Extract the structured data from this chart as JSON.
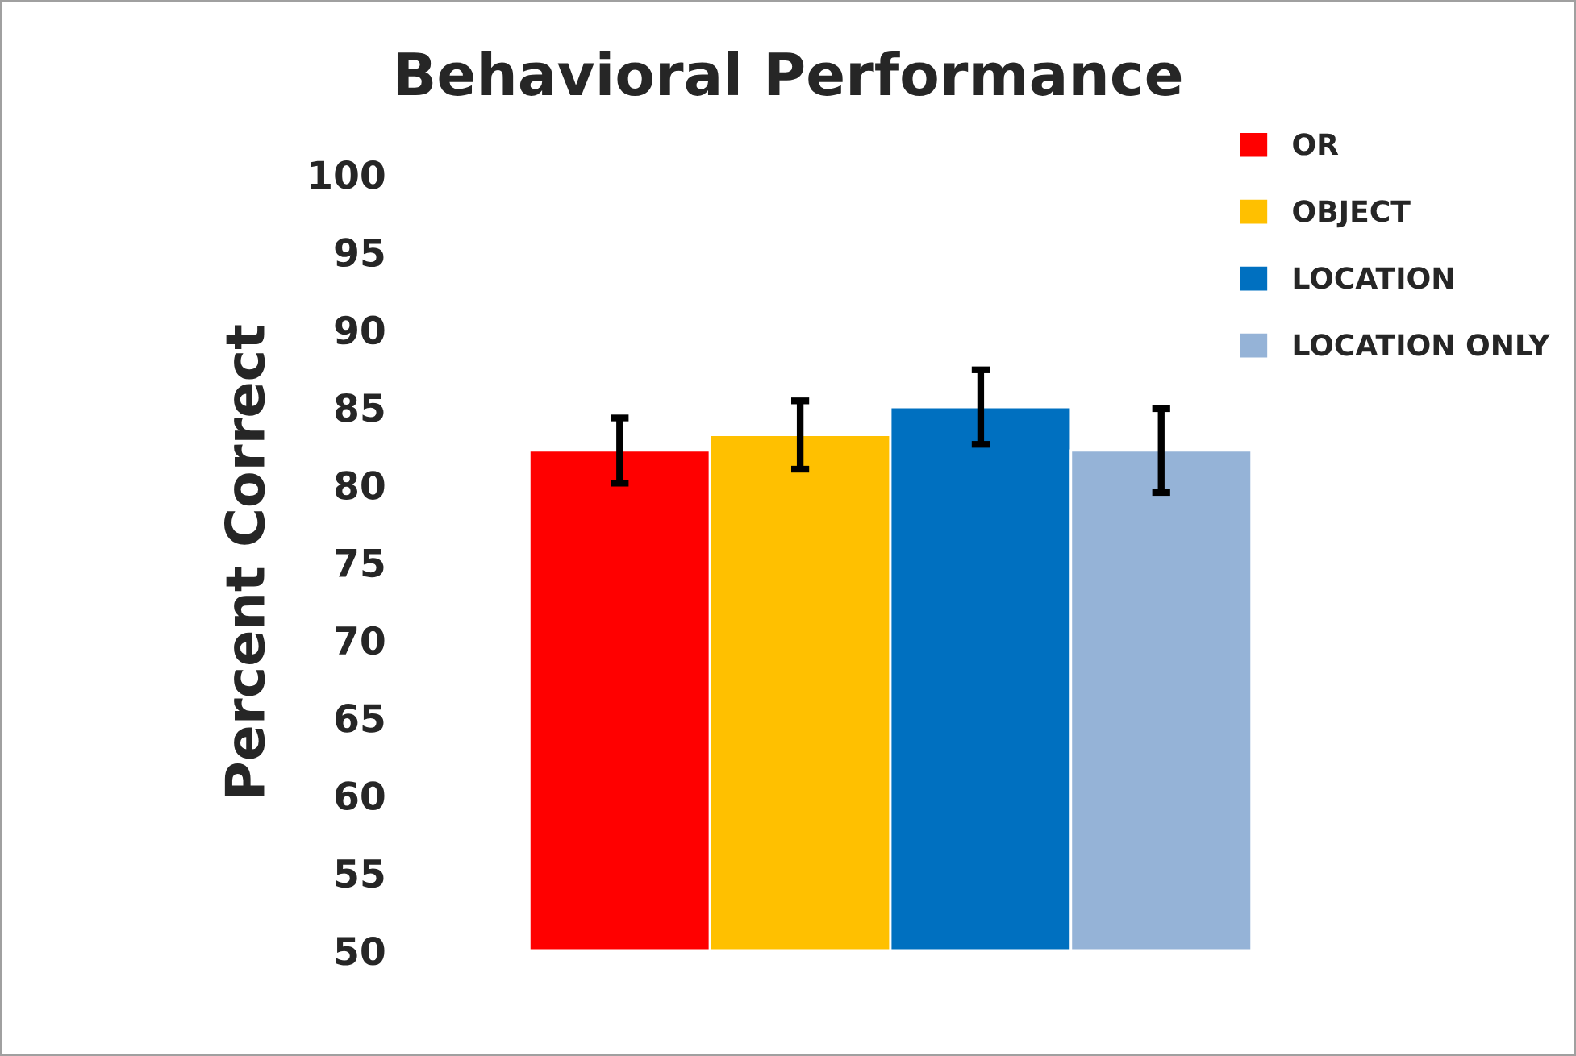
{
  "chart_data": {
    "type": "bar",
    "title": "Behavioral Performance",
    "ylabel": "Percent Correct",
    "categories": [
      null
    ],
    "series": [
      {
        "name": "OR",
        "color": "#ff0000",
        "values": [
          82.2
        ],
        "errors": [
          2.1
        ]
      },
      {
        "name": "OBJECT",
        "color": "#ffc000",
        "values": [
          83.2
        ],
        "errors": [
          2.2
        ]
      },
      {
        "name": "LOCATION",
        "color": "#0070c0",
        "values": [
          85.0
        ],
        "errors": [
          2.4
        ]
      },
      {
        "name": "LOCATION ONLY",
        "color": "#95b3d7",
        "values": [
          82.2
        ],
        "errors": [
          2.7
        ]
      }
    ],
    "ylim": [
      50,
      100
    ],
    "yticks": [
      50,
      55,
      60,
      65,
      70,
      75,
      80,
      85,
      90,
      95,
      100
    ],
    "tick_labels": "y",
    "grid": false,
    "legend": "top right"
  }
}
